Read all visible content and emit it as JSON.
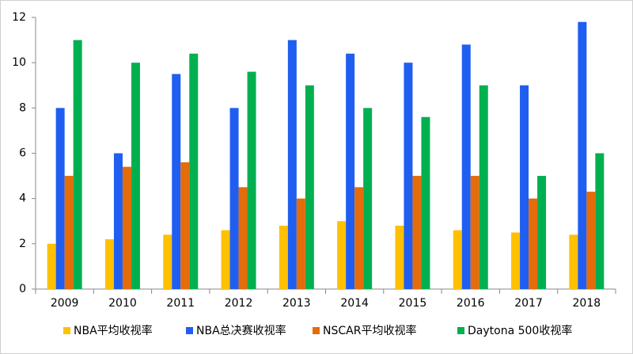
{
  "chart_data": {
    "type": "bar",
    "categories": [
      "2009",
      "2010",
      "2011",
      "2012",
      "2013",
      "2014",
      "2015",
      "2016",
      "2017",
      "2018"
    ],
    "series": [
      {
        "name": "NBA平均收视率",
        "color": "#ffc000",
        "values": [
          2.0,
          2.2,
          2.4,
          2.6,
          2.8,
          3.0,
          2.8,
          2.6,
          2.5,
          2.4
        ]
      },
      {
        "name": "NBA总决赛收视率",
        "color": "#1f5ef0",
        "values": [
          8,
          6,
          9.5,
          8,
          11,
          10.4,
          10,
          10.8,
          9,
          11.8
        ]
      },
      {
        "name": "NSCAR平均收视率",
        "color": "#e46c0a",
        "values": [
          5,
          5.4,
          5.6,
          4.5,
          4,
          4.5,
          5,
          5,
          4,
          4.3
        ]
      },
      {
        "name": "Daytona 500收视率",
        "color": "#00b050",
        "values": [
          11,
          10,
          10.4,
          9.6,
          9,
          8,
          7.6,
          9,
          5,
          6
        ]
      }
    ],
    "ylim": [
      0,
      12
    ],
    "yticks": [
      0,
      2,
      4,
      6,
      8,
      10,
      12
    ],
    "grid": false,
    "legend": "bottom"
  }
}
